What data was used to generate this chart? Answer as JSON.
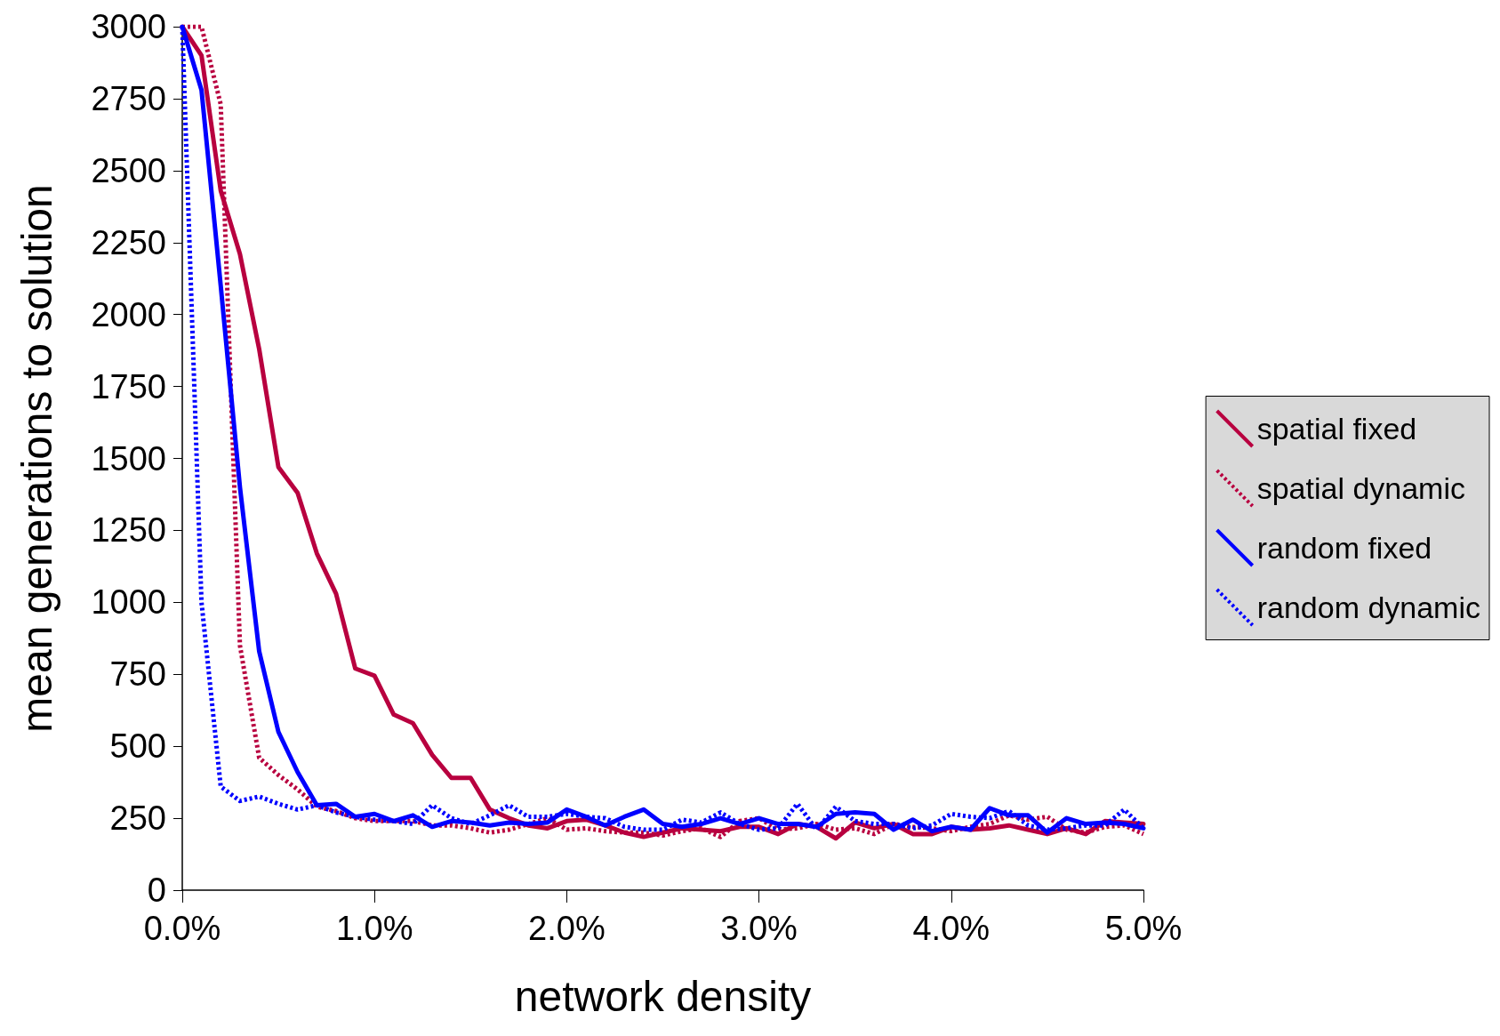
{
  "chart_data": {
    "type": "line",
    "xlabel": "network density",
    "ylabel": "mean generations to solution",
    "x": [
      0,
      0.1,
      0.2,
      0.3,
      0.4,
      0.5,
      0.6,
      0.7,
      0.8,
      0.9,
      1.0,
      1.1,
      1.2,
      1.3,
      1.4,
      1.5,
      1.6,
      1.7,
      1.8,
      1.9,
      2.0,
      2.1,
      2.2,
      2.3,
      2.4,
      2.5,
      2.6,
      2.7,
      2.8,
      2.9,
      3.0,
      3.1,
      3.2,
      3.3,
      3.4,
      3.5,
      3.6,
      3.7,
      3.8,
      3.9,
      4.0,
      4.1,
      4.2,
      4.3,
      4.4,
      4.5,
      4.6,
      4.7,
      4.8,
      4.9,
      5.0
    ],
    "series": [
      {
        "name": "spatial fixed",
        "color": "#b8003f",
        "line_style": "solid",
        "values": [
          3000,
          2900,
          2430,
          2210,
          1880,
          1470,
          1380,
          1170,
          1030,
          770,
          745,
          610,
          580,
          470,
          390,
          390,
          280,
          250,
          225,
          215,
          240,
          245,
          225,
          200,
          185,
          200,
          215,
          210,
          205,
          220,
          220,
          195,
          230,
          220,
          180,
          235,
          215,
          230,
          195,
          195,
          220,
          210,
          215,
          225,
          210,
          195,
          215,
          195,
          240,
          235,
          230
        ]
      },
      {
        "name": "spatial dynamic",
        "color": "#b8003f",
        "line_style": "dotted",
        "values": [
          3000,
          3000,
          2730,
          850,
          460,
          400,
          350,
          290,
          275,
          250,
          240,
          240,
          240,
          225,
          225,
          215,
          200,
          210,
          230,
          250,
          210,
          215,
          205,
          200,
          200,
          190,
          205,
          215,
          185,
          240,
          250,
          210,
          215,
          230,
          210,
          215,
          195,
          230,
          220,
          215,
          205,
          220,
          230,
          260,
          245,
          255,
          210,
          200,
          220,
          225,
          195
        ]
      },
      {
        "name": "random fixed",
        "color": "#0000ff",
        "line_style": "solid",
        "values": [
          3000,
          2780,
          2100,
          1400,
          830,
          550,
          410,
          295,
          300,
          255,
          265,
          240,
          260,
          220,
          240,
          235,
          225,
          235,
          230,
          235,
          280,
          255,
          225,
          255,
          280,
          230,
          220,
          230,
          250,
          230,
          250,
          230,
          230,
          220,
          265,
          270,
          265,
          210,
          245,
          205,
          220,
          210,
          285,
          260,
          260,
          200,
          250,
          230,
          235,
          230,
          215
        ]
      },
      {
        "name": "random dynamic",
        "color": "#0000ff",
        "line_style": "dotted",
        "values": [
          3000,
          1000,
          360,
          310,
          325,
          300,
          280,
          295,
          270,
          255,
          245,
          240,
          230,
          295,
          250,
          230,
          260,
          295,
          255,
          255,
          265,
          255,
          250,
          220,
          210,
          210,
          245,
          235,
          270,
          230,
          210,
          215,
          300,
          210,
          290,
          240,
          230,
          230,
          215,
          225,
          265,
          255,
          250,
          275,
          225,
          210,
          215,
          225,
          225,
          280,
          215
        ]
      }
    ],
    "xlim": [
      0,
      5
    ],
    "xticks": [
      {
        "value": 0,
        "label": "0.0%"
      },
      {
        "value": 1,
        "label": "1.0%"
      },
      {
        "value": 2,
        "label": "2.0%"
      },
      {
        "value": 3,
        "label": "3.0%"
      },
      {
        "value": 4,
        "label": "4.0%"
      },
      {
        "value": 5,
        "label": "5.0%"
      }
    ],
    "ylim": [
      0,
      3000
    ],
    "yticks": [
      0,
      250,
      500,
      750,
      1000,
      1250,
      1500,
      1750,
      2000,
      2250,
      2500,
      2750,
      3000
    ],
    "grid": false,
    "legend": "right",
    "marker": "none"
  }
}
